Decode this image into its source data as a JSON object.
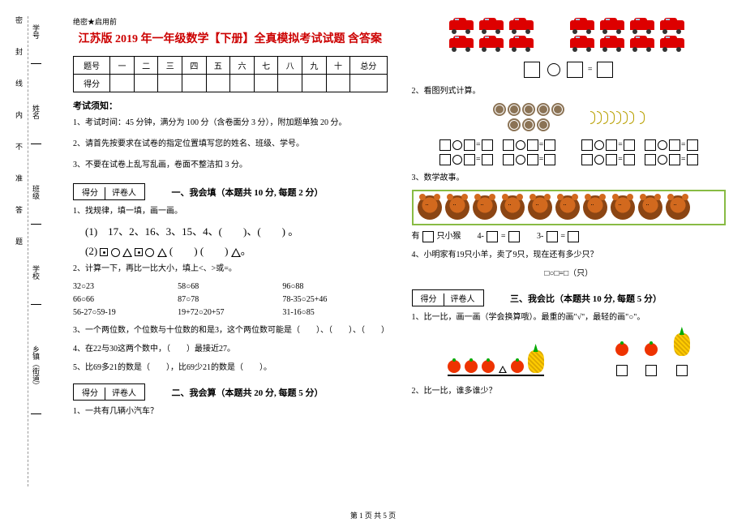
{
  "header": {
    "secret": "绝密★启用前",
    "title": "江苏版 2019 年一年级数学【下册】全真模拟考试试题 含答案"
  },
  "score_table": {
    "row1": [
      "题号",
      "一",
      "二",
      "三",
      "四",
      "五",
      "六",
      "七",
      "八",
      "九",
      "十",
      "总分"
    ],
    "row2_head": "得分"
  },
  "notice": {
    "head": "考试须知：",
    "n1": "1、考试时间：45 分钟，满分为 100 分（含卷面分 3 分），附加题单独 20 分。",
    "n2": "2、请首先按要求在试卷的指定位置填写您的姓名、班级、学号。",
    "n3": "3、不要在试卷上乱写乱画，卷面不整洁扣 3 分。"
  },
  "grade_box": {
    "g": "得分",
    "r": "评卷人"
  },
  "sections": {
    "s1": "一、我会填（本题共 10 分, 每题 2 分）",
    "s2": "二、我会算（本题共 20 分, 每题 5 分）",
    "s3": "三、我会比（本题共 10 分, 每题 5 分）"
  },
  "q_left": {
    "q1_1": "1、找规律，填一填，画一画。",
    "pattern1": "(1)　17、2、16、3、15、4、(　　)、(　　) 。",
    "pattern2_pre": "(2)",
    "q1_2": "2、计算一下，再比一比大小，填上<、>或=。",
    "calc": [
      "32○23",
      "58○68",
      "96○88",
      "66○66",
      "87○78",
      "78-35○25+46",
      "56-27○59-19",
      "19+72○20+57",
      "31-16○85"
    ],
    "q1_3": "3、一个两位数，个位数与十位数的和是3，这个两位数可能是（　　）、（　　）、（　　）",
    "q1_4": "4、在22与30这两个数中，（　　）最接近27。",
    "q1_5": "5、比69多21的数是（　　），比69少21的数是（　　）。",
    "q2_1": "1、一共有几辆小汽车？"
  },
  "q_right": {
    "q2_2": "2、看图列式计算。",
    "q2_3": "3、数学故事。",
    "monkey_text": "有　　　只小猴　　　4-　　　=　　　　　3-　　　=",
    "q2_4": "4、小明家有19只小羊，卖了9只，现在还有多少只？",
    "q2_4_eq": "□○□=□（只）",
    "q3_1": "1、比一比，画一画（学会换算哦）。最重的画\"√\"，最轻的画\"○\"。",
    "q3_2": "2、比一比，谁多谁少？"
  },
  "side": {
    "l1": "学号",
    "l2": "姓名",
    "l3": "班级",
    "l4": "学校",
    "l5": "乡镇（街道）"
  },
  "binding_chars": "密封线内不准答题",
  "footer": "第 1 页 共 5 页"
}
